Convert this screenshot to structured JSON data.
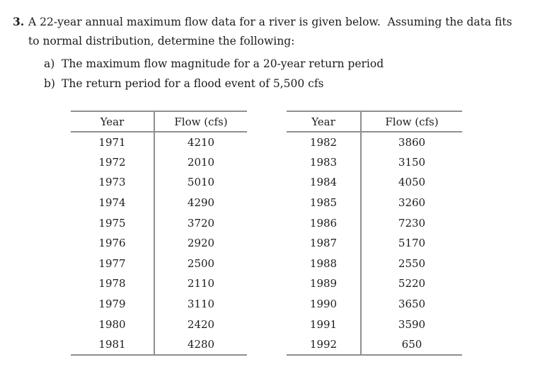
{
  "page": {
    "background_color": "#ffffff",
    "text_color": "#1c1c1c",
    "table_rule_color": "#8f8f8f"
  },
  "problem": {
    "number": "3.",
    "line1": "A 22-year annual maximum flow data for a river is given below.  Assuming the data fits",
    "line2": "to normal distribution, determine the following:",
    "items": [
      {
        "label": "a)",
        "text": "The maximum flow magnitude for a 20-year return period"
      },
      {
        "label": "b)",
        "text": "The return period for a flood event of 5,500 cfs"
      }
    ]
  },
  "tables": [
    {
      "headers": [
        "Year",
        "Flow (cfs)"
      ],
      "rows": [
        [
          "1971",
          "4210"
        ],
        [
          "1972",
          "2010"
        ],
        [
          "1973",
          "5010"
        ],
        [
          "1974",
          "4290"
        ],
        [
          "1975",
          "3720"
        ],
        [
          "1976",
          "2920"
        ],
        [
          "1977",
          "2500"
        ],
        [
          "1978",
          "2110"
        ],
        [
          "1979",
          "3110"
        ],
        [
          "1980",
          "2420"
        ],
        [
          "1981",
          "4280"
        ]
      ]
    },
    {
      "headers": [
        "Year",
        "Flow (cfs)"
      ],
      "rows": [
        [
          "1982",
          "3860"
        ],
        [
          "1983",
          "3150"
        ],
        [
          "1984",
          "4050"
        ],
        [
          "1985",
          "3260"
        ],
        [
          "1986",
          "7230"
        ],
        [
          "1987",
          "5170"
        ],
        [
          "1988",
          "2550"
        ],
        [
          "1989",
          "5220"
        ],
        [
          "1990",
          "3650"
        ],
        [
          "1991",
          "3590"
        ],
        [
          "1992",
          "650"
        ]
      ]
    }
  ]
}
